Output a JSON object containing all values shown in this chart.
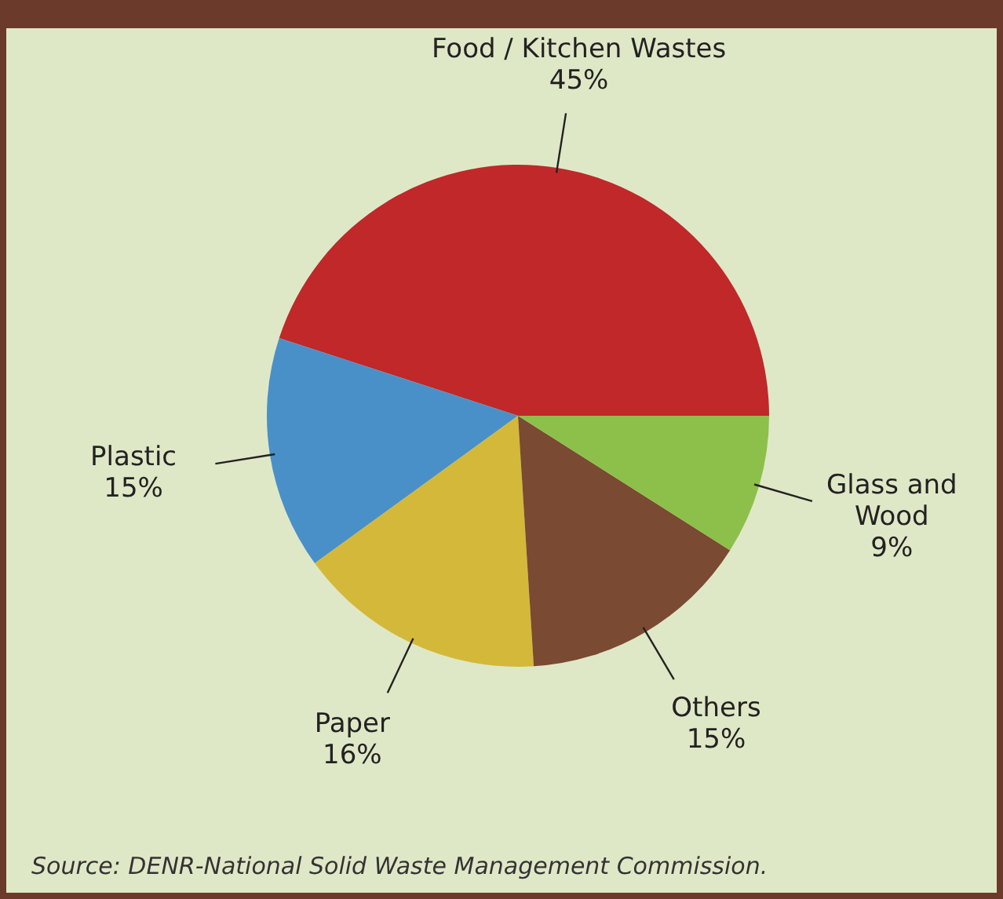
{
  "chart_data": {
    "type": "pie",
    "categories": [
      "Food / Kitchen Wastes",
      "Plastic",
      "Paper",
      "Others",
      "Glass and Wood"
    ],
    "values": [
      45,
      15,
      16,
      15,
      9
    ],
    "value_labels": [
      "45%",
      "15%",
      "16%",
      "15%",
      "9%"
    ],
    "colors": [
      "#c0282a",
      "#4a90c8",
      "#d4b83a",
      "#7a4a32",
      "#8cc04a"
    ],
    "annotations": [
      "Source: DENR-National Solid Waste Management Commission."
    ]
  }
}
